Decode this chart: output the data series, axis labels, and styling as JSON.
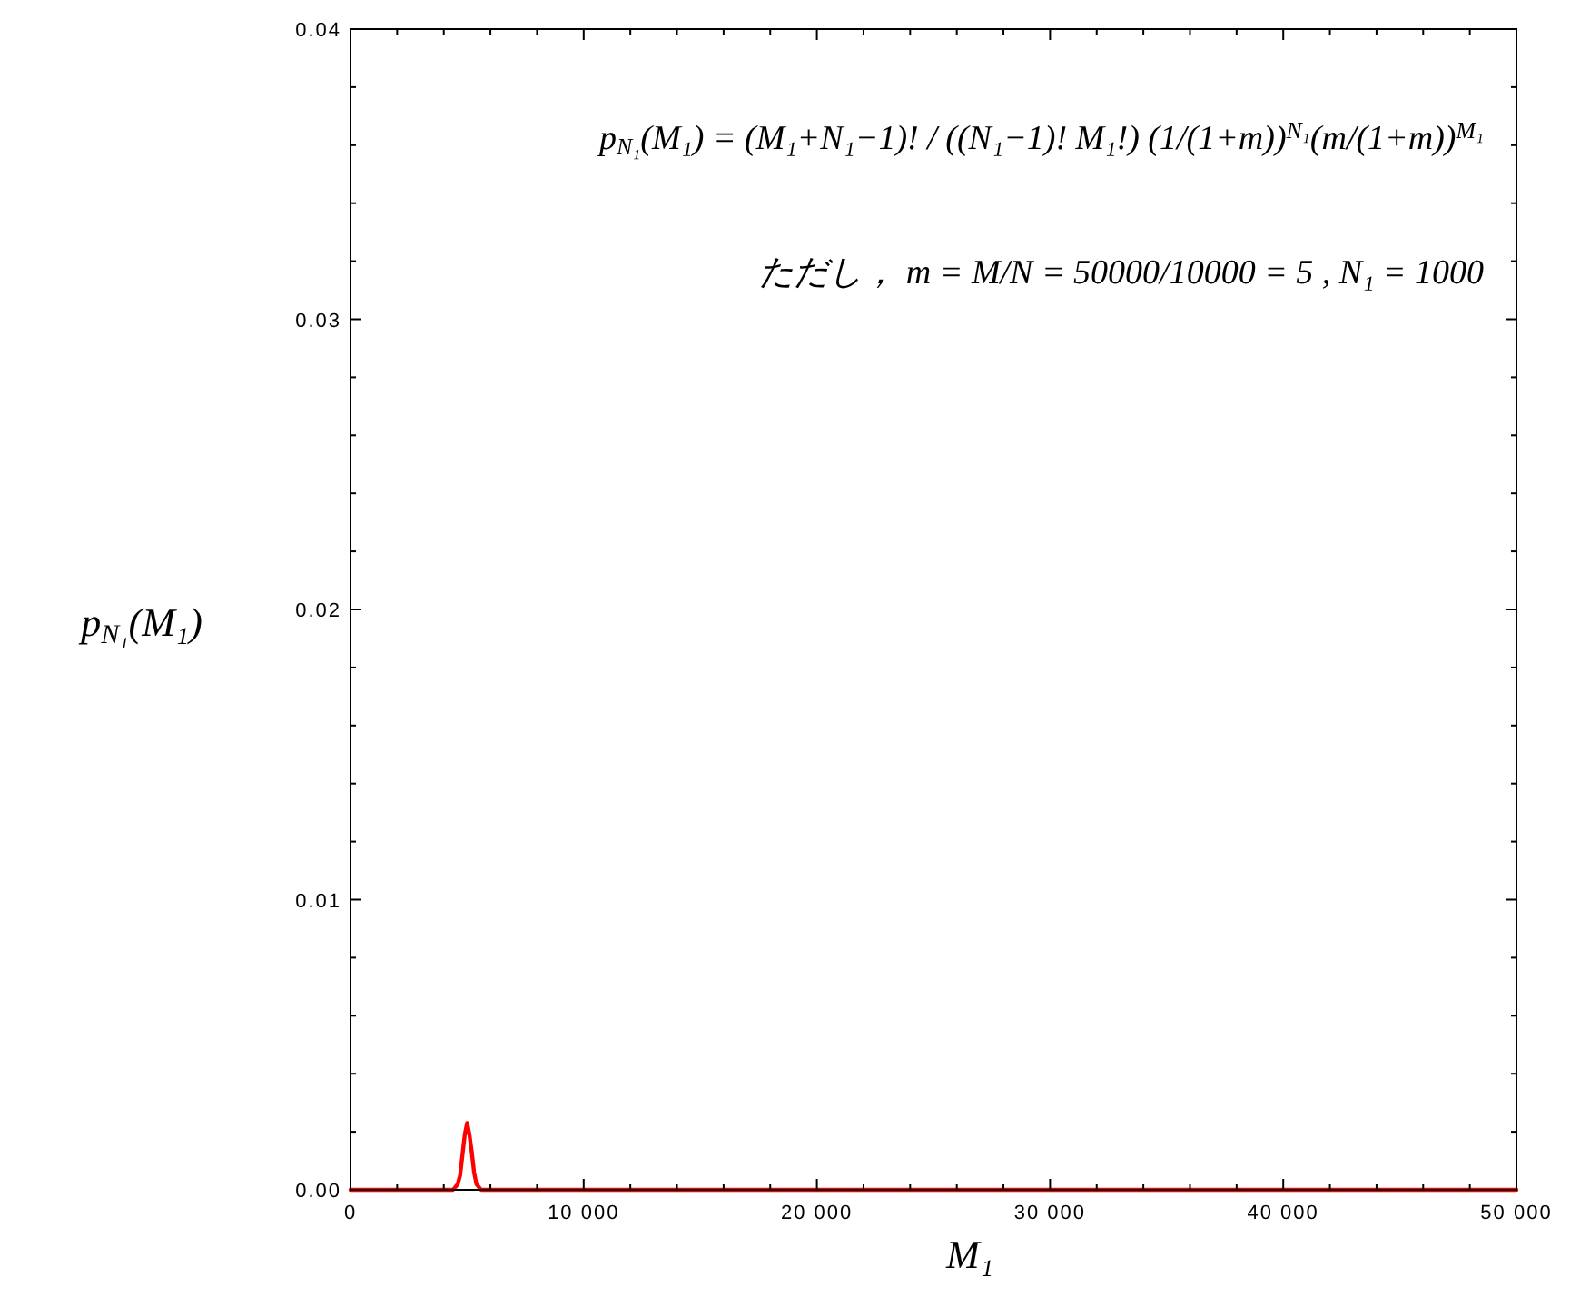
{
  "chart_data": {
    "type": "line",
    "xlabel": "M₁",
    "ylabel": "p$_{N₁}$(M₁)",
    "annotations": [
      "p$_{N₁}$(M₁) = (M₁+N₁−1)! / ((N₁−1)! M₁!)  (1/(1+m))$^{N₁}$(m/(1+m))$^{M₁}$",
      "ただし，  m = M/N = 50000/10000 = 5 ,  N₁ = 1000"
    ],
    "x": [
      0,
      4000,
      4400,
      4500,
      4600,
      4700,
      4800,
      4900,
      5000,
      5100,
      5200,
      5300,
      5400,
      5500,
      5600,
      6000,
      50000
    ],
    "series": [
      {
        "color": "#ff0000",
        "values": [
          0,
          0,
          0,
          0.0001,
          0.0002,
          0.0005,
          0.0012,
          0.0019,
          0.0023,
          0.0019,
          0.0013,
          0.0006,
          0.0002,
          0.0001,
          0,
          0,
          0
        ]
      }
    ],
    "line_style": "solid",
    "xlim": [
      0,
      50000
    ],
    "ylim": [
      0,
      0.04
    ],
    "xticks": [
      0,
      {
        "value": 2000,
        "label": null
      },
      {
        "value": 4000,
        "label": null
      },
      {
        "value": 6000,
        "label": null
      },
      {
        "value": 8000,
        "label": null
      },
      {
        "value": 10000,
        "label": "10 000"
      },
      {
        "value": 12000,
        "label": null
      },
      {
        "value": 14000,
        "label": null
      },
      {
        "value": 16000,
        "label": null
      },
      {
        "value": 18000,
        "label": null
      },
      {
        "value": 20000,
        "label": "20 000"
      },
      {
        "value": 22000,
        "label": null
      },
      {
        "value": 24000,
        "label": null
      },
      {
        "value": 26000,
        "label": null
      },
      {
        "value": 28000,
        "label": null
      },
      {
        "value": 30000,
        "label": "30 000"
      },
      {
        "value": 32000,
        "label": null
      },
      {
        "value": 34000,
        "label": null
      },
      {
        "value": 36000,
        "label": null
      },
      {
        "value": 38000,
        "label": null
      },
      {
        "value": 40000,
        "label": "40 000"
      },
      {
        "value": 42000,
        "label": null
      },
      {
        "value": 44000,
        "label": null
      },
      {
        "value": 46000,
        "label": null
      },
      {
        "value": 48000,
        "label": null
      },
      {
        "value": 50000,
        "label": "50 000"
      }
    ],
    "yticks": [
      {
        "value": 0,
        "label": "0.00"
      },
      {
        "value": 0.002,
        "label": null
      },
      {
        "value": 0.004,
        "label": null
      },
      {
        "value": 0.006,
        "label": null
      },
      {
        "value": 0.008,
        "label": null
      },
      0.01,
      {
        "value": 0.012,
        "label": null
      },
      {
        "value": 0.014,
        "label": null
      },
      {
        "value": 0.016,
        "label": null
      },
      {
        "value": 0.018,
        "label": null
      },
      0.02,
      {
        "value": 0.022,
        "label": null
      },
      {
        "value": 0.024,
        "label": null
      },
      {
        "value": 0.026,
        "label": null
      },
      {
        "value": 0.028,
        "label": null
      },
      0.03,
      {
        "value": 0.032,
        "label": null
      },
      {
        "value": 0.034,
        "label": null
      },
      {
        "value": 0.036,
        "label": null
      },
      {
        "value": 0.038,
        "label": null
      },
      0.04
    ]
  }
}
